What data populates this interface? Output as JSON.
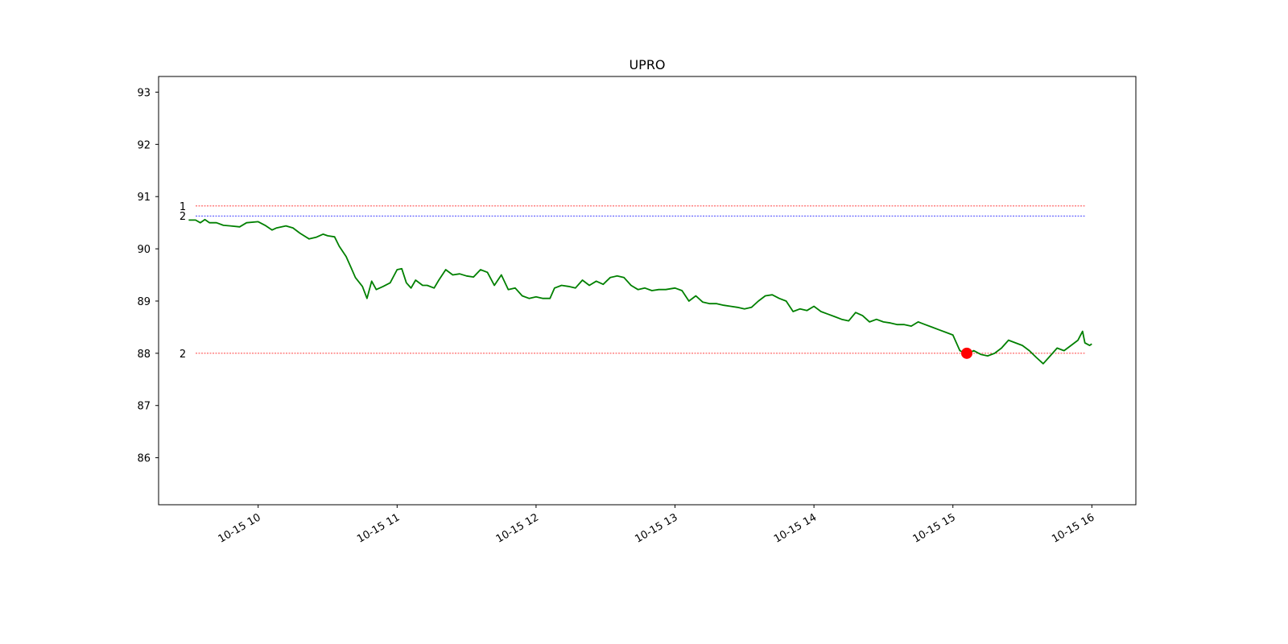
{
  "chart_data": {
    "type": "line",
    "title": "UPRO",
    "xlabel": "",
    "ylabel": "",
    "xlim": [
      "10-15 09:17",
      "10-15 16:19"
    ],
    "ylim": [
      85.1,
      93.3
    ],
    "x_ticks": [
      "10-15 10",
      "10-15 11",
      "10-15 12",
      "10-15 13",
      "10-15 14",
      "10-15 15",
      "10-15 16"
    ],
    "y_ticks": [
      86,
      87,
      88,
      89,
      90,
      91,
      92,
      93
    ],
    "grid": false,
    "series": [
      {
        "color": "#008000",
        "points": [
          [
            "10-15 09:30",
            90.55
          ],
          [
            "10-15 09:33",
            90.55
          ],
          [
            "10-15 09:35",
            90.5
          ],
          [
            "10-15 09:37",
            90.56
          ],
          [
            "10-15 09:39",
            90.5
          ],
          [
            "10-15 09:42",
            90.5
          ],
          [
            "10-15 09:45",
            90.45
          ],
          [
            "10-15 09:48",
            90.44
          ],
          [
            "10-15 09:52",
            90.42
          ],
          [
            "10-15 09:55",
            90.5
          ],
          [
            "10-15 10:00",
            90.52
          ],
          [
            "10-15 10:03",
            90.45
          ],
          [
            "10-15 10:06",
            90.36
          ],
          [
            "10-15 10:08",
            90.4
          ],
          [
            "10-15 10:12",
            90.44
          ],
          [
            "10-15 10:15",
            90.4
          ],
          [
            "10-15 10:18",
            90.3
          ],
          [
            "10-15 10:22",
            90.19
          ],
          [
            "10-15 10:25",
            90.22
          ],
          [
            "10-15 10:28",
            90.28
          ],
          [
            "10-15 10:30",
            90.25
          ],
          [
            "10-15 10:33",
            90.23
          ],
          [
            "10-15 10:35",
            90.05
          ],
          [
            "10-15 10:38",
            89.85
          ],
          [
            "10-15 10:40",
            89.65
          ],
          [
            "10-15 10:42",
            89.45
          ],
          [
            "10-15 10:45",
            89.28
          ],
          [
            "10-15 10:47",
            89.05
          ],
          [
            "10-15 10:49",
            89.38
          ],
          [
            "10-15 10:51",
            89.22
          ],
          [
            "10-15 10:54",
            89.28
          ],
          [
            "10-15 10:57",
            89.35
          ],
          [
            "10-15 11:00",
            89.6
          ],
          [
            "10-15 11:02",
            89.62
          ],
          [
            "10-15 11:04",
            89.35
          ],
          [
            "10-15 11:06",
            89.25
          ],
          [
            "10-15 11:08",
            89.4
          ],
          [
            "10-15 11:11",
            89.3
          ],
          [
            "10-15 11:13",
            89.3
          ],
          [
            "10-15 11:16",
            89.25
          ],
          [
            "10-15 11:18",
            89.4
          ],
          [
            "10-15 11:21",
            89.6
          ],
          [
            "10-15 11:24",
            89.5
          ],
          [
            "10-15 11:27",
            89.52
          ],
          [
            "10-15 11:30",
            89.48
          ],
          [
            "10-15 11:33",
            89.46
          ],
          [
            "10-15 11:36",
            89.6
          ],
          [
            "10-15 11:39",
            89.55
          ],
          [
            "10-15 11:42",
            89.3
          ],
          [
            "10-15 11:45",
            89.5
          ],
          [
            "10-15 11:48",
            89.22
          ],
          [
            "10-15 11:51",
            89.25
          ],
          [
            "10-15 11:54",
            89.1
          ],
          [
            "10-15 11:57",
            89.05
          ],
          [
            "10-15 12:00",
            89.08
          ],
          [
            "10-15 12:03",
            89.05
          ],
          [
            "10-15 12:06",
            89.05
          ],
          [
            "10-15 12:08",
            89.25
          ],
          [
            "10-15 12:11",
            89.3
          ],
          [
            "10-15 12:14",
            89.28
          ],
          [
            "10-15 12:17",
            89.25
          ],
          [
            "10-15 12:20",
            89.4
          ],
          [
            "10-15 12:23",
            89.3
          ],
          [
            "10-15 12:26",
            89.38
          ],
          [
            "10-15 12:29",
            89.32
          ],
          [
            "10-15 12:32",
            89.45
          ],
          [
            "10-15 12:35",
            89.48
          ],
          [
            "10-15 12:38",
            89.45
          ],
          [
            "10-15 12:41",
            89.3
          ],
          [
            "10-15 12:44",
            89.22
          ],
          [
            "10-15 12:47",
            89.25
          ],
          [
            "10-15 12:50",
            89.2
          ],
          [
            "10-15 12:53",
            89.22
          ],
          [
            "10-15 12:56",
            89.22
          ],
          [
            "10-15 13:00",
            89.25
          ],
          [
            "10-15 13:03",
            89.2
          ],
          [
            "10-15 13:06",
            89.0
          ],
          [
            "10-15 13:09",
            89.1
          ],
          [
            "10-15 13:12",
            88.98
          ],
          [
            "10-15 13:15",
            88.95
          ],
          [
            "10-15 13:18",
            88.95
          ],
          [
            "10-15 13:21",
            88.92
          ],
          [
            "10-15 13:24",
            88.9
          ],
          [
            "10-15 13:27",
            88.88
          ],
          [
            "10-15 13:30",
            88.85
          ],
          [
            "10-15 13:33",
            88.88
          ],
          [
            "10-15 13:36",
            89.0
          ],
          [
            "10-15 13:39",
            89.1
          ],
          [
            "10-15 13:42",
            89.12
          ],
          [
            "10-15 13:45",
            89.05
          ],
          [
            "10-15 13:48",
            89.0
          ],
          [
            "10-15 13:51",
            88.8
          ],
          [
            "10-15 13:54",
            88.85
          ],
          [
            "10-15 13:57",
            88.82
          ],
          [
            "10-15 14:00",
            88.9
          ],
          [
            "10-15 14:03",
            88.8
          ],
          [
            "10-15 14:06",
            88.75
          ],
          [
            "10-15 14:09",
            88.7
          ],
          [
            "10-15 14:12",
            88.65
          ],
          [
            "10-15 14:15",
            88.62
          ],
          [
            "10-15 14:18",
            88.78
          ],
          [
            "10-15 14:21",
            88.72
          ],
          [
            "10-15 14:24",
            88.6
          ],
          [
            "10-15 14:27",
            88.65
          ],
          [
            "10-15 14:30",
            88.6
          ],
          [
            "10-15 14:33",
            88.58
          ],
          [
            "10-15 14:36",
            88.55
          ],
          [
            "10-15 14:39",
            88.55
          ],
          [
            "10-15 14:42",
            88.52
          ],
          [
            "10-15 14:45",
            88.6
          ],
          [
            "10-15 14:48",
            88.55
          ],
          [
            "10-15 14:51",
            88.5
          ],
          [
            "10-15 14:54",
            88.45
          ],
          [
            "10-15 14:57",
            88.4
          ],
          [
            "10-15 15:00",
            88.35
          ],
          [
            "10-15 15:03",
            88.05
          ],
          [
            "10-15 15:06",
            87.98
          ],
          [
            "10-15 15:09",
            88.05
          ],
          [
            "10-15 15:12",
            87.98
          ],
          [
            "10-15 15:15",
            87.95
          ],
          [
            "10-15 15:18",
            88.0
          ],
          [
            "10-15 15:21",
            88.1
          ],
          [
            "10-15 15:24",
            88.25
          ],
          [
            "10-15 15:27",
            88.2
          ],
          [
            "10-15 15:30",
            88.15
          ],
          [
            "10-15 15:33",
            88.05
          ],
          [
            "10-15 15:36",
            87.92
          ],
          [
            "10-15 15:39",
            87.8
          ],
          [
            "10-15 15:42",
            87.95
          ],
          [
            "10-15 15:45",
            88.1
          ],
          [
            "10-15 15:48",
            88.05
          ],
          [
            "10-15 15:51",
            88.15
          ],
          [
            "10-15 15:54",
            88.25
          ],
          [
            "10-15 15:56",
            88.42
          ],
          [
            "10-15 15:57",
            88.2
          ],
          [
            "10-15 15:59",
            88.15
          ],
          [
            "10-15 16:00",
            88.18
          ]
        ]
      }
    ],
    "reference_lines": [
      {
        "label": "1",
        "value": 90.82,
        "color": "#ff0000",
        "from": "10-15 09:33",
        "to": "10-15 15:57"
      },
      {
        "label": "2",
        "value": 90.63,
        "color": "#0000ff",
        "from": "10-15 09:33",
        "to": "10-15 15:57"
      },
      {
        "label": "2",
        "value": 88.0,
        "color": "#ff0000",
        "from": "10-15 09:33",
        "to": "10-15 15:57"
      }
    ],
    "markers": [
      {
        "x": "10-15 15:06",
        "y": 88.0,
        "color": "#ff0000"
      }
    ]
  }
}
